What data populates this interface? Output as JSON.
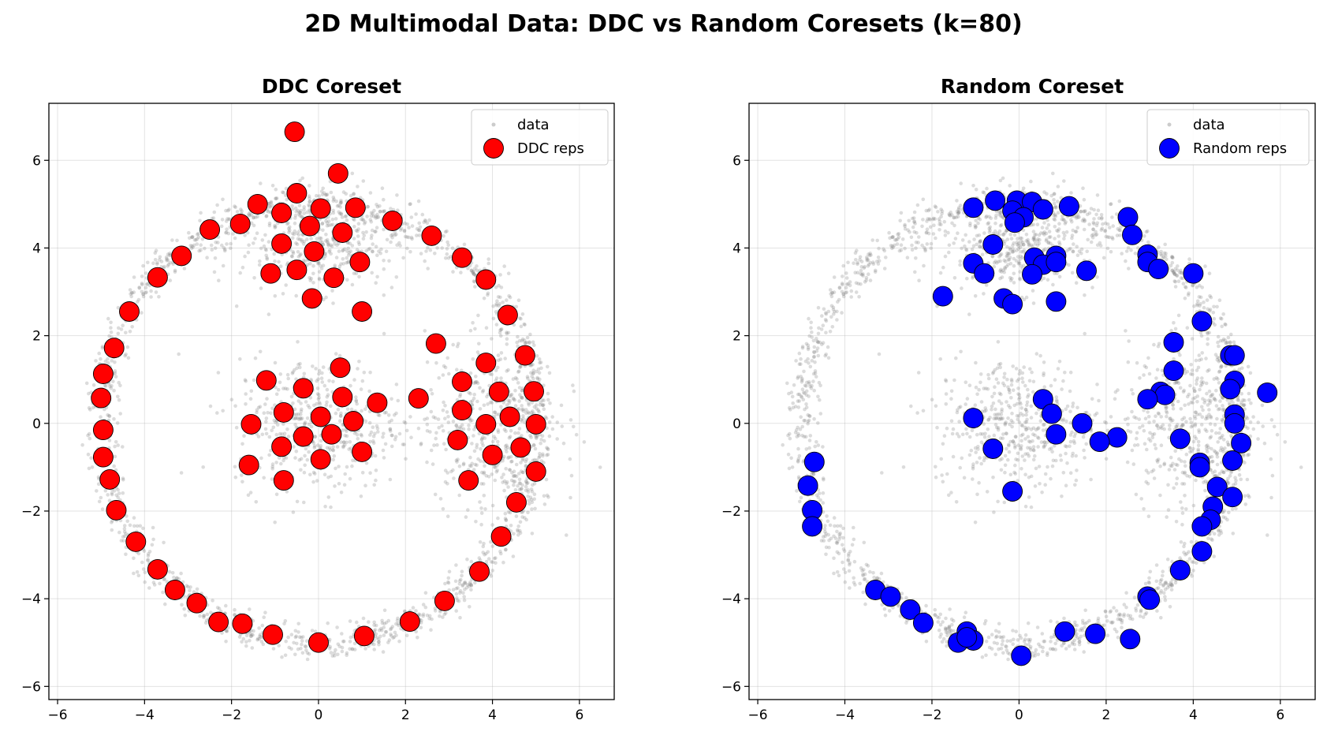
{
  "figure": {
    "title": "2D Multimodal Data: DDC vs Random Coresets (k=80)"
  },
  "chart_data": [
    {
      "type": "scatter",
      "title": "DDC Coreset",
      "xlabel": "",
      "ylabel": "",
      "xlim": [
        -6.2,
        6.8
      ],
      "ylim": [
        -6.3,
        7.3
      ],
      "xticks": [
        -6,
        -4,
        -2,
        0,
        2,
        4,
        6
      ],
      "yticks": [
        -6,
        -4,
        -2,
        0,
        2,
        4,
        6
      ],
      "grid": true,
      "legend": {
        "placement": "top-right",
        "entries": [
          "data",
          "DDC reps"
        ]
      },
      "series": [
        {
          "name": "DDC reps",
          "color": "#ff0000",
          "points": [
            [
              -0.55,
              6.65
            ],
            [
              0.45,
              5.7
            ],
            [
              -0.5,
              5.25
            ],
            [
              -1.4,
              5.0
            ],
            [
              -0.85,
              4.8
            ],
            [
              0.05,
              4.9
            ],
            [
              0.85,
              4.92
            ],
            [
              -1.8,
              4.55
            ],
            [
              -0.2,
              4.5
            ],
            [
              0.55,
              4.35
            ],
            [
              1.7,
              4.62
            ],
            [
              -2.5,
              4.42
            ],
            [
              2.6,
              4.28
            ],
            [
              -0.85,
              4.1
            ],
            [
              -0.1,
              3.92
            ],
            [
              -3.15,
              3.82
            ],
            [
              3.3,
              3.78
            ],
            [
              0.95,
              3.68
            ],
            [
              -1.1,
              3.42
            ],
            [
              -0.5,
              3.5
            ],
            [
              0.35,
              3.32
            ],
            [
              -3.7,
              3.33
            ],
            [
              3.85,
              3.28
            ],
            [
              -0.15,
              2.85
            ],
            [
              1.0,
              2.55
            ],
            [
              -4.35,
              2.55
            ],
            [
              4.35,
              2.47
            ],
            [
              2.7,
              1.82
            ],
            [
              -4.7,
              1.72
            ],
            [
              4.75,
              1.55
            ],
            [
              3.85,
              1.38
            ],
            [
              0.5,
              1.27
            ],
            [
              -4.95,
              1.13
            ],
            [
              -1.2,
              0.98
            ],
            [
              3.3,
              0.95
            ],
            [
              -0.35,
              0.8
            ],
            [
              4.95,
              0.73
            ],
            [
              4.15,
              0.72
            ],
            [
              -5.0,
              0.58
            ],
            [
              0.55,
              0.6
            ],
            [
              2.3,
              0.57
            ],
            [
              1.35,
              0.47
            ],
            [
              -0.8,
              0.25
            ],
            [
              0.05,
              0.15
            ],
            [
              3.3,
              0.3
            ],
            [
              4.4,
              0.15
            ],
            [
              -1.55,
              -0.02
            ],
            [
              0.8,
              0.05
            ],
            [
              3.85,
              -0.02
            ],
            [
              5.0,
              -0.02
            ],
            [
              -4.95,
              -0.15
            ],
            [
              -0.35,
              -0.3
            ],
            [
              0.3,
              -0.25
            ],
            [
              3.2,
              -0.38
            ],
            [
              -0.85,
              -0.53
            ],
            [
              4.65,
              -0.55
            ],
            [
              -4.95,
              -0.77
            ],
            [
              0.05,
              -0.82
            ],
            [
              1.0,
              -0.65
            ],
            [
              4.0,
              -0.72
            ],
            [
              -1.6,
              -0.95
            ],
            [
              5.0,
              -1.1
            ],
            [
              -4.8,
              -1.28
            ],
            [
              -0.8,
              -1.3
            ],
            [
              3.45,
              -1.3
            ],
            [
              4.55,
              -1.8
            ],
            [
              -4.65,
              -1.98
            ],
            [
              4.2,
              -2.58
            ],
            [
              -4.2,
              -2.7
            ],
            [
              -3.7,
              -3.33
            ],
            [
              3.7,
              -3.38
            ],
            [
              -3.3,
              -3.8
            ],
            [
              -2.8,
              -4.1
            ],
            [
              2.9,
              -4.05
            ],
            [
              -2.3,
              -4.53
            ],
            [
              -1.75,
              -4.57
            ],
            [
              2.1,
              -4.52
            ],
            [
              -1.05,
              -4.82
            ],
            [
              1.05,
              -4.85
            ],
            [
              0.0,
              -5.0
            ]
          ]
        }
      ]
    },
    {
      "type": "scatter",
      "title": "Random Coreset",
      "xlabel": "",
      "ylabel": "",
      "xlim": [
        -6.2,
        6.8
      ],
      "ylim": [
        -6.3,
        7.3
      ],
      "xticks": [
        -6,
        -4,
        -2,
        0,
        2,
        4,
        6
      ],
      "yticks": [
        -6,
        -4,
        -2,
        0,
        2,
        4,
        6
      ],
      "grid": true,
      "legend": {
        "placement": "top-right",
        "entries": [
          "data",
          "Random reps"
        ]
      },
      "series": [
        {
          "name": "Random reps",
          "color": "#0000ff",
          "points": [
            [
              -1.05,
              4.92
            ],
            [
              -0.55,
              5.08
            ],
            [
              -0.05,
              5.08
            ],
            [
              0.3,
              5.05
            ],
            [
              -0.15,
              4.85
            ],
            [
              0.55,
              4.88
            ],
            [
              1.15,
              4.95
            ],
            [
              0.1,
              4.7
            ],
            [
              -0.1,
              4.58
            ],
            [
              2.5,
              4.7
            ],
            [
              2.6,
              4.3
            ],
            [
              -0.6,
              4.08
            ],
            [
              0.35,
              3.78
            ],
            [
              0.85,
              3.82
            ],
            [
              2.95,
              3.85
            ],
            [
              -1.05,
              3.65
            ],
            [
              0.55,
              3.62
            ],
            [
              0.85,
              3.68
            ],
            [
              2.95,
              3.68
            ],
            [
              3.2,
              3.52
            ],
            [
              -0.8,
              3.42
            ],
            [
              0.3,
              3.4
            ],
            [
              1.55,
              3.48
            ],
            [
              4.0,
              3.42
            ],
            [
              -1.75,
              2.9
            ],
            [
              -0.35,
              2.85
            ],
            [
              -0.15,
              2.72
            ],
            [
              0.85,
              2.78
            ],
            [
              4.2,
              2.33
            ],
            [
              3.55,
              1.85
            ],
            [
              4.85,
              1.55
            ],
            [
              4.95,
              1.55
            ],
            [
              3.55,
              1.2
            ],
            [
              4.95,
              0.97
            ],
            [
              4.85,
              0.78
            ],
            [
              3.25,
              0.72
            ],
            [
              3.35,
              0.65
            ],
            [
              5.7,
              0.7
            ],
            [
              0.55,
              0.55
            ],
            [
              2.95,
              0.55
            ],
            [
              -1.05,
              0.12
            ],
            [
              0.75,
              0.22
            ],
            [
              4.95,
              0.2
            ],
            [
              1.45,
              0.0
            ],
            [
              4.95,
              0.0
            ],
            [
              0.85,
              -0.25
            ],
            [
              2.25,
              -0.32
            ],
            [
              1.85,
              -0.42
            ],
            [
              3.7,
              -0.35
            ],
            [
              5.1,
              -0.45
            ],
            [
              -0.6,
              -0.58
            ],
            [
              4.9,
              -0.85
            ],
            [
              -4.7,
              -0.88
            ],
            [
              4.15,
              -0.9
            ],
            [
              4.15,
              -1.0
            ],
            [
              -4.85,
              -1.42
            ],
            [
              4.55,
              -1.45
            ],
            [
              -0.15,
              -1.55
            ],
            [
              4.9,
              -1.68
            ],
            [
              4.45,
              -1.9
            ],
            [
              -4.75,
              -1.98
            ],
            [
              4.4,
              -2.2
            ],
            [
              -4.75,
              -2.35
            ],
            [
              4.2,
              -2.35
            ],
            [
              4.2,
              -2.92
            ],
            [
              3.7,
              -3.35
            ],
            [
              -3.3,
              -3.8
            ],
            [
              -2.95,
              -3.95
            ],
            [
              2.95,
              -3.95
            ],
            [
              3.0,
              -4.02
            ],
            [
              -2.5,
              -4.25
            ],
            [
              -2.2,
              -4.55
            ],
            [
              -1.2,
              -4.75
            ],
            [
              1.05,
              -4.75
            ],
            [
              1.75,
              -4.8
            ],
            [
              -1.05,
              -4.95
            ],
            [
              -1.4,
              -5.0
            ],
            [
              2.55,
              -4.92
            ],
            [
              0.05,
              -5.3
            ],
            [
              -1.2,
              -4.88
            ]
          ]
        }
      ]
    }
  ]
}
